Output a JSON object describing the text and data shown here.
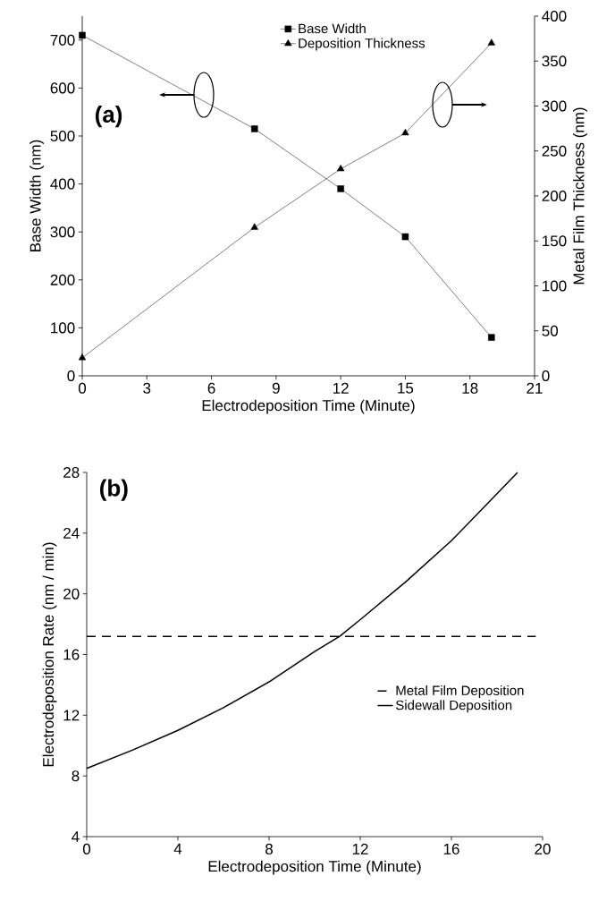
{
  "chart_data": [
    {
      "type": "line",
      "annotations": [
        "(a)"
      ],
      "xlabel": "Electrodeposition Time (Minute)",
      "ylabel": "Base Width (nm)",
      "y2label": "Metal Film Thickness (nm)",
      "x": [
        0,
        8,
        12,
        15,
        19
      ],
      "series": [
        {
          "name": "Base Width",
          "color": "#000000",
          "marker": "square",
          "values": [
            710,
            515,
            390,
            290,
            80
          ]
        },
        {
          "name": "Deposition Thickness",
          "color": "#000000",
          "marker": "triangle",
          "axis": "y2",
          "values": [
            20,
            165,
            230,
            270,
            370
          ]
        }
      ],
      "xlim": [
        0,
        21
      ],
      "xticks": [
        0,
        3,
        6,
        9,
        12,
        15,
        18,
        21
      ],
      "ylim": [
        0,
        750
      ],
      "yticks": [
        0,
        100,
        200,
        300,
        400,
        500,
        600,
        700
      ],
      "y2lim": [
        0,
        400
      ],
      "y2ticks": [
        0,
        50,
        100,
        150,
        200,
        250,
        300,
        350,
        400
      ],
      "legend": "top"
    },
    {
      "type": "line",
      "annotations": [
        "(b)"
      ],
      "xlabel": "Electrodeposition Time (Minute)",
      "ylabel": "Electrodeposition Rate (nm / min)",
      "series": [
        {
          "name": "Metal Film Deposition",
          "color": "#000000",
          "line_style": "dashed",
          "x": [
            0,
            19.7
          ],
          "values": [
            17.2,
            17.2
          ]
        },
        {
          "name": "Sidewall Deposition",
          "color": "#000000",
          "line_style": "solid",
          "x": [
            0,
            2,
            4,
            6,
            8,
            10,
            11.1,
            12,
            14,
            16,
            18,
            18.9
          ],
          "values": [
            8.5,
            9.7,
            11.0,
            12.5,
            14.2,
            16.2,
            17.2,
            18.3,
            20.8,
            23.5,
            26.6,
            28
          ]
        }
      ],
      "xlim": [
        0,
        20
      ],
      "xticks": [
        0,
        4,
        8,
        12,
        16,
        20
      ],
      "ylim": [
        4,
        28
      ],
      "yticks": [
        4,
        8,
        12,
        16,
        20,
        24,
        28
      ],
      "legend": "right"
    }
  ]
}
